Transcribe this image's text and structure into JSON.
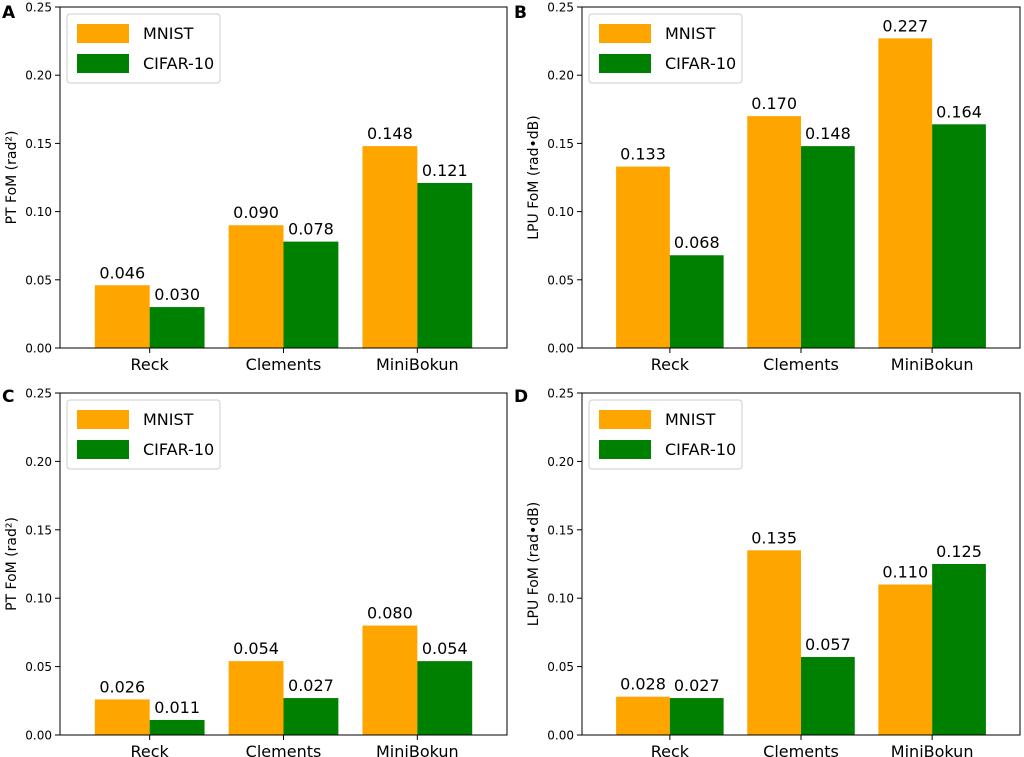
{
  "chart_data": [
    {
      "panel": "A",
      "type": "bar",
      "categories": [
        "Reck",
        "Clements",
        "MiniBokun"
      ],
      "series": [
        {
          "name": "MNIST",
          "values": [
            0.046,
            0.09,
            0.148
          ],
          "labels": [
            "0.046",
            "0.090",
            "0.148"
          ]
        },
        {
          "name": "CIFAR-10",
          "values": [
            0.03,
            0.078,
            0.121
          ],
          "labels": [
            "0.030",
            "0.078",
            "0.121"
          ]
        }
      ],
      "ylabel": "PT FoM (rad²)",
      "ylim": [
        0,
        0.25
      ],
      "yticks": [
        "0.00",
        "0.05",
        "0.10",
        "0.15",
        "0.20",
        "0.25"
      ],
      "legend": "top-left"
    },
    {
      "panel": "B",
      "type": "bar",
      "categories": [
        "Reck",
        "Clements",
        "MiniBokun"
      ],
      "series": [
        {
          "name": "MNIST",
          "values": [
            0.133,
            0.17,
            0.227
          ],
          "labels": [
            "0.133",
            "0.170",
            "0.227"
          ]
        },
        {
          "name": "CIFAR-10",
          "values": [
            0.068,
            0.148,
            0.164
          ],
          "labels": [
            "0.068",
            "0.148",
            "0.164"
          ]
        }
      ],
      "ylabel": "LPU FoM (rad•dB)",
      "ylim": [
        0,
        0.25
      ],
      "yticks": [
        "0.00",
        "0.05",
        "0.10",
        "0.15",
        "0.20",
        "0.25"
      ],
      "legend": "top-left"
    },
    {
      "panel": "C",
      "type": "bar",
      "categories": [
        "Reck",
        "Clements",
        "MiniBokun"
      ],
      "series": [
        {
          "name": "MNIST",
          "values": [
            0.026,
            0.054,
            0.08
          ],
          "labels": [
            "0.026",
            "0.054",
            "0.080"
          ]
        },
        {
          "name": "CIFAR-10",
          "values": [
            0.011,
            0.027,
            0.054
          ],
          "labels": [
            "0.011",
            "0.027",
            "0.054"
          ]
        }
      ],
      "ylabel": "PT FoM (rad²)",
      "ylim": [
        0,
        0.25
      ],
      "yticks": [
        "0.00",
        "0.05",
        "0.10",
        "0.15",
        "0.20",
        "0.25"
      ],
      "legend": "top-left"
    },
    {
      "panel": "D",
      "type": "bar",
      "categories": [
        "Reck",
        "Clements",
        "MiniBokun"
      ],
      "series": [
        {
          "name": "MNIST",
          "values": [
            0.028,
            0.135,
            0.11
          ],
          "labels": [
            "0.028",
            "0.135",
            "0.110"
          ]
        },
        {
          "name": "CIFAR-10",
          "values": [
            0.027,
            0.057,
            0.125
          ],
          "labels": [
            "0.027",
            "0.057",
            "0.125"
          ]
        }
      ],
      "ylabel": "LPU FoM (rad•dB)",
      "ylim": [
        0,
        0.25
      ],
      "yticks": [
        "0.00",
        "0.05",
        "0.10",
        "0.15",
        "0.20",
        "0.25"
      ],
      "legend": "top-left"
    }
  ],
  "colors": {
    "MNIST": "#ffa500",
    "CIFAR-10": "#008000",
    "axis": "#000000",
    "legend_border": "#cccccc"
  }
}
